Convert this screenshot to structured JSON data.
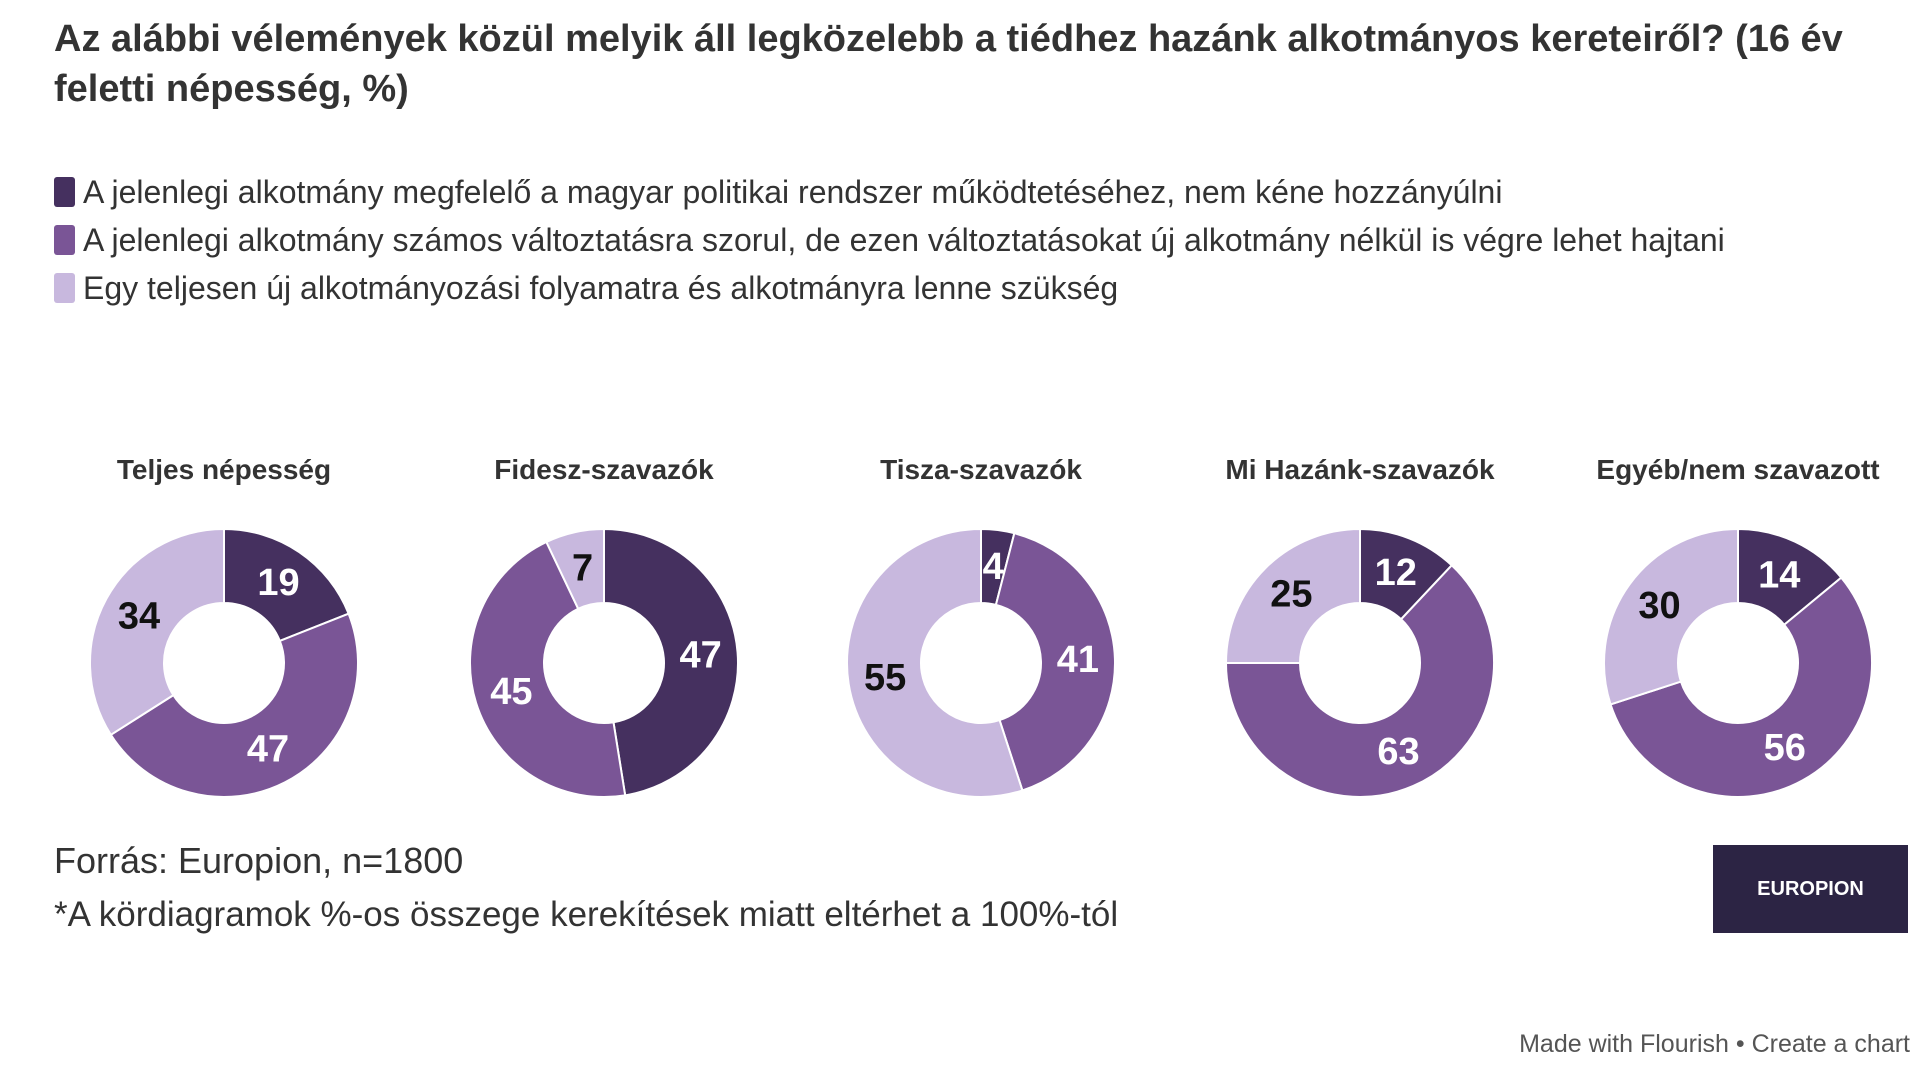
{
  "title": "Az alábbi vélemények közül melyik áll legközelebb a tiédhez hazánk alkotmányos kereteiről? (16 év feletti népesség, %)",
  "chart_data": [
    {
      "type": "donut",
      "title": "Teljes népesség",
      "categories": [
        "A jelenlegi alkotmány megfelelő a magyar politikai rendszer működtetéséhez, nem kéne hozzányúlni",
        "A jelenlegi alkotmány számos változtatásra szorul, de ezen változtatásokat új alkotmány nélkül is végre lehet hajtani",
        "Egy teljesen új alkotmányozási folyamatra és alkotmányra lenne szükség"
      ],
      "colors": [
        "#45305f",
        "#7a5596",
        "#c8b8de"
      ],
      "values": [
        19,
        47,
        34
      ]
    },
    {
      "type": "donut",
      "title": "Fidesz-szavazók",
      "categories": [
        "A jelenlegi alkotmány megfelelő a magyar politikai rendszer működtetéséhez, nem kéne hozzányúlni",
        "A jelenlegi alkotmány számos változtatásra szorul, de ezen változtatásokat új alkotmány nélkül is végre lehet hajtani",
        "Egy teljesen új alkotmányozási folyamatra és alkotmányra lenne szükség"
      ],
      "colors": [
        "#45305f",
        "#7a5596",
        "#c8b8de"
      ],
      "values": [
        47,
        45,
        7
      ]
    },
    {
      "type": "donut",
      "title": "Tisza-szavazók",
      "categories": [
        "A jelenlegi alkotmány megfelelő a magyar politikai rendszer működtetéséhez, nem kéne hozzányúlni",
        "A jelenlegi alkotmány számos változtatásra szorul, de ezen változtatásokat új alkotmány nélkül is végre lehet hajtani",
        "Egy teljesen új alkotmányozási folyamatra és alkotmányra lenne szükség"
      ],
      "colors": [
        "#45305f",
        "#7a5596",
        "#c8b8de"
      ],
      "values": [
        4,
        41,
        55
      ]
    },
    {
      "type": "donut",
      "title": "Mi Hazánk-szavazók",
      "categories": [
        "A jelenlegi alkotmány megfelelő a magyar politikai rendszer működtetéséhez, nem kéne hozzányúlni",
        "A jelenlegi alkotmány számos változtatásra szorul, de ezen változtatásokat új alkotmány nélkül is végre lehet hajtani",
        "Egy teljesen új alkotmányozási folyamatra és alkotmányra lenne szükség"
      ],
      "colors": [
        "#45305f",
        "#7a5596",
        "#c8b8de"
      ],
      "values": [
        12,
        63,
        25
      ]
    },
    {
      "type": "donut",
      "title": "Egyéb/nem szavazott",
      "categories": [
        "A jelenlegi alkotmány megfelelő a magyar politikai rendszer működtetéséhez, nem kéne hozzányúlni",
        "A jelenlegi alkotmány számos változtatásra szorul, de ezen változtatásokat új alkotmány nélkül is végre lehet hajtani",
        "Egy teljesen új alkotmányozási folyamatra és alkotmányra lenne szükség"
      ],
      "colors": [
        "#45305f",
        "#7a5596",
        "#c8b8de"
      ],
      "values": [
        14,
        56,
        30
      ]
    }
  ],
  "source": "Forrás: Europion, n=1800",
  "note": "*A kördiagramok %-os összege kerekítések miatt eltérhet a 100%-tól",
  "logo": "EUROPION",
  "footer": {
    "made": "Made with Flourish",
    "separator": "•",
    "create": "Create a chart"
  }
}
